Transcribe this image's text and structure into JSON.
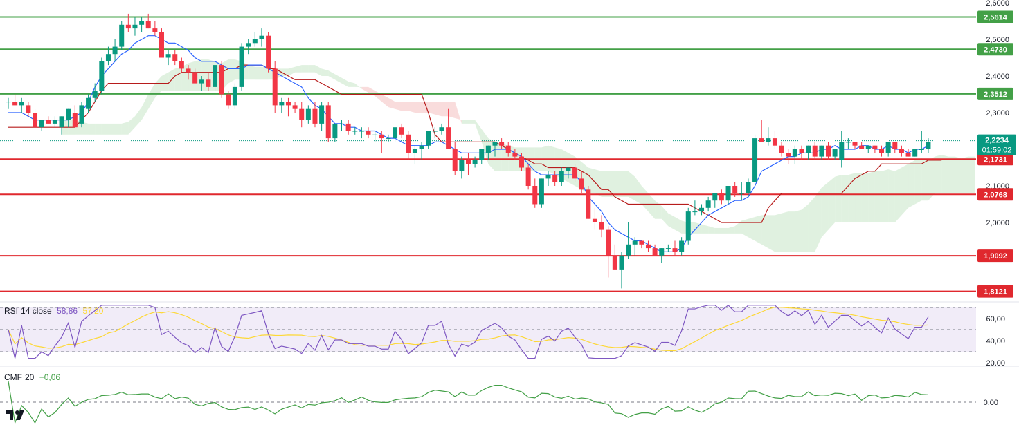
{
  "colors": {
    "up": "#089981",
    "down": "#f23645",
    "tenkan": "#2962ff",
    "kijun": "#b71c1c",
    "cloud_bull": "#a5d6a7",
    "cloud_bear": "#ef9a9a",
    "support": "#e0282e",
    "resistance": "#43a047",
    "rsi_line": "#7e57c2",
    "rsi_ma": "#fdd835",
    "rsi_band": "#ede7f6",
    "cmf_line": "#43a047",
    "price_tag": "#089981"
  },
  "price_axis": {
    "ticks": [
      "2,6000",
      "2,5000",
      "2,4000",
      "2,3000",
      "2,2000",
      "2,1000",
      "2,0000"
    ],
    "current_price": "2,2234",
    "countdown": "01:59:02"
  },
  "levels": {
    "resistance": [
      {
        "label": "2,5614",
        "value": 2.5614
      },
      {
        "label": "2,4730",
        "value": 2.473
      },
      {
        "label": "2,3512",
        "value": 2.3512
      }
    ],
    "support": [
      {
        "label": "2,1731",
        "value": 2.1731
      },
      {
        "label": "2,0768",
        "value": 2.0768
      },
      {
        "label": "1,9092",
        "value": 1.9092
      },
      {
        "label": "1,8121",
        "value": 1.8121
      }
    ]
  },
  "rsi": {
    "name": "RSI",
    "params": "14 close",
    "value": "58,86",
    "ma_value": "57,20",
    "ticks": [
      "60,00",
      "40,00",
      "20,00"
    ]
  },
  "cmf": {
    "name": "CMF",
    "params": "20",
    "value": "−0,06",
    "ticks": [
      "0,00"
    ]
  },
  "chart_data": {
    "type": "candlestick",
    "ylim": [
      1.8,
      2.6
    ],
    "candles_ohlc": [
      [
        2.33,
        2.34,
        2.31,
        2.33
      ],
      [
        2.33,
        2.35,
        2.32,
        2.32
      ],
      [
        2.32,
        2.34,
        2.3,
        2.33
      ],
      [
        2.32,
        2.33,
        2.29,
        2.3
      ],
      [
        2.3,
        2.31,
        2.26,
        2.26
      ],
      [
        2.26,
        2.28,
        2.25,
        2.28
      ],
      [
        2.28,
        2.29,
        2.27,
        2.27
      ],
      [
        2.27,
        2.29,
        2.26,
        2.28
      ],
      [
        2.26,
        2.29,
        2.24,
        2.29
      ],
      [
        2.28,
        2.31,
        2.26,
        2.31
      ],
      [
        2.3,
        2.32,
        2.27,
        2.26
      ],
      [
        2.27,
        2.33,
        2.26,
        2.32
      ],
      [
        2.31,
        2.35,
        2.3,
        2.34
      ],
      [
        2.34,
        2.38,
        2.33,
        2.36
      ],
      [
        2.36,
        2.45,
        2.35,
        2.44
      ],
      [
        2.44,
        2.48,
        2.43,
        2.46
      ],
      [
        2.46,
        2.5,
        2.44,
        2.48
      ],
      [
        2.48,
        2.55,
        2.47,
        2.54
      ],
      [
        2.54,
        2.57,
        2.52,
        2.53
      ],
      [
        2.53,
        2.56,
        2.51,
        2.54
      ],
      [
        2.54,
        2.56,
        2.52,
        2.55
      ],
      [
        2.55,
        2.57,
        2.53,
        2.53
      ],
      [
        2.53,
        2.55,
        2.51,
        2.52
      ],
      [
        2.52,
        2.53,
        2.45,
        2.45
      ],
      [
        2.45,
        2.47,
        2.43,
        2.46
      ],
      [
        2.46,
        2.47,
        2.43,
        2.44
      ],
      [
        2.44,
        2.45,
        2.41,
        2.42
      ],
      [
        2.42,
        2.43,
        2.39,
        2.41
      ],
      [
        2.41,
        2.42,
        2.38,
        2.38
      ],
      [
        2.38,
        2.4,
        2.36,
        2.39
      ],
      [
        2.39,
        2.41,
        2.36,
        2.37
      ],
      [
        2.37,
        2.43,
        2.36,
        2.43
      ],
      [
        2.43,
        2.44,
        2.34,
        2.35
      ],
      [
        2.35,
        2.36,
        2.31,
        2.32
      ],
      [
        2.32,
        2.38,
        2.31,
        2.37
      ],
      [
        2.37,
        2.49,
        2.36,
        2.48
      ],
      [
        2.48,
        2.5,
        2.46,
        2.49
      ],
      [
        2.49,
        2.52,
        2.48,
        2.5
      ],
      [
        2.5,
        2.53,
        2.48,
        2.51
      ],
      [
        2.51,
        2.52,
        2.41,
        2.42
      ],
      [
        2.42,
        2.44,
        2.3,
        2.32
      ],
      [
        2.32,
        2.34,
        2.3,
        2.33
      ],
      [
        2.33,
        2.34,
        2.29,
        2.32
      ],
      [
        2.32,
        2.33,
        2.3,
        2.31
      ],
      [
        2.31,
        2.33,
        2.26,
        2.28
      ],
      [
        2.28,
        2.32,
        2.27,
        2.31
      ],
      [
        2.31,
        2.33,
        2.26,
        2.27
      ],
      [
        2.27,
        2.33,
        2.25,
        2.32
      ],
      [
        2.32,
        2.33,
        2.22,
        2.23
      ],
      [
        2.23,
        2.27,
        2.22,
        2.27
      ],
      [
        2.27,
        2.28,
        2.25,
        2.27
      ],
      [
        2.27,
        2.28,
        2.24,
        2.25
      ],
      [
        2.25,
        2.26,
        2.24,
        2.25
      ],
      [
        2.25,
        2.26,
        2.23,
        2.25
      ],
      [
        2.25,
        2.26,
        2.23,
        2.24
      ],
      [
        2.24,
        2.25,
        2.22,
        2.24
      ],
      [
        2.24,
        2.25,
        2.19,
        2.23
      ],
      [
        2.23,
        2.24,
        2.22,
        2.23
      ],
      [
        2.23,
        2.26,
        2.22,
        2.26
      ],
      [
        2.26,
        2.27,
        2.23,
        2.24
      ],
      [
        2.24,
        2.25,
        2.17,
        2.19
      ],
      [
        2.19,
        2.21,
        2.16,
        2.2
      ],
      [
        2.2,
        2.22,
        2.17,
        2.21
      ],
      [
        2.21,
        2.25,
        2.2,
        2.25
      ],
      [
        2.25,
        2.26,
        2.23,
        2.25
      ],
      [
        2.25,
        2.27,
        2.24,
        2.26
      ],
      [
        2.26,
        2.31,
        2.2,
        2.2
      ],
      [
        2.2,
        2.22,
        2.13,
        2.14
      ],
      [
        2.14,
        2.18,
        2.12,
        2.17
      ],
      [
        2.17,
        2.19,
        2.13,
        2.16
      ],
      [
        2.16,
        2.18,
        2.15,
        2.17
      ],
      [
        2.17,
        2.2,
        2.16,
        2.2
      ],
      [
        2.19,
        2.21,
        2.17,
        2.21
      ],
      [
        2.21,
        2.22,
        2.18,
        2.22
      ],
      [
        2.22,
        2.23,
        2.2,
        2.21
      ],
      [
        2.21,
        2.22,
        2.18,
        2.19
      ],
      [
        2.19,
        2.2,
        2.17,
        2.18
      ],
      [
        2.18,
        2.19,
        2.14,
        2.15
      ],
      [
        2.15,
        2.16,
        2.09,
        2.1
      ],
      [
        2.1,
        2.12,
        2.04,
        2.05
      ],
      [
        2.05,
        2.12,
        2.04,
        2.12
      ],
      [
        2.12,
        2.14,
        2.1,
        2.13
      ],
      [
        2.13,
        2.14,
        2.1,
        2.11
      ],
      [
        2.11,
        2.15,
        2.1,
        2.14
      ],
      [
        2.14,
        2.15,
        2.12,
        2.15
      ],
      [
        2.15,
        2.16,
        2.11,
        2.12
      ],
      [
        2.12,
        2.14,
        2.08,
        2.09
      ],
      [
        2.09,
        2.1,
        2.01,
        2.01
      ],
      [
        2.01,
        2.04,
        1.98,
        2.0
      ],
      [
        2.0,
        2.02,
        1.96,
        1.98
      ],
      [
        1.98,
        1.99,
        1.85,
        1.91
      ],
      [
        1.91,
        1.94,
        1.89,
        1.87
      ],
      [
        1.87,
        1.92,
        1.82,
        1.91
      ],
      [
        1.91,
        2.0,
        1.9,
        1.94
      ],
      [
        1.94,
        1.96,
        1.91,
        1.95
      ],
      [
        1.95,
        1.95,
        1.93,
        1.94
      ],
      [
        1.94,
        1.95,
        1.92,
        1.93
      ],
      [
        1.93,
        1.94,
        1.91,
        1.91
      ],
      [
        1.91,
        1.93,
        1.89,
        1.93
      ],
      [
        1.93,
        1.94,
        1.92,
        1.93
      ],
      [
        1.93,
        1.95,
        1.91,
        1.92
      ],
      [
        1.92,
        1.96,
        1.91,
        1.95
      ],
      [
        1.95,
        2.04,
        1.94,
        2.03
      ],
      [
        2.03,
        2.06,
        2.02,
        2.03
      ],
      [
        2.03,
        2.05,
        2.02,
        2.04
      ],
      [
        2.04,
        2.07,
        2.03,
        2.06
      ],
      [
        2.06,
        2.08,
        2.04,
        2.08
      ],
      [
        2.08,
        2.09,
        2.05,
        2.06
      ],
      [
        2.06,
        2.1,
        2.05,
        2.1
      ],
      [
        2.1,
        2.11,
        2.07,
        2.08
      ],
      [
        2.08,
        2.11,
        2.06,
        2.08
      ],
      [
        2.08,
        2.12,
        2.07,
        2.11
      ],
      [
        2.11,
        2.24,
        2.1,
        2.23
      ],
      [
        2.23,
        2.28,
        2.22,
        2.22
      ],
      [
        2.22,
        2.26,
        2.21,
        2.23
      ],
      [
        2.23,
        2.25,
        2.2,
        2.21
      ],
      [
        2.21,
        2.22,
        2.18,
        2.19
      ],
      [
        2.19,
        2.2,
        2.16,
        2.18
      ],
      [
        2.18,
        2.21,
        2.16,
        2.2
      ],
      [
        2.2,
        2.21,
        2.17,
        2.19
      ],
      [
        2.19,
        2.21,
        2.17,
        2.21
      ],
      [
        2.21,
        2.22,
        2.17,
        2.18
      ],
      [
        2.18,
        2.21,
        2.17,
        2.21
      ],
      [
        2.21,
        2.22,
        2.17,
        2.18
      ],
      [
        2.18,
        2.2,
        2.17,
        2.2
      ],
      [
        2.17,
        2.25,
        2.15,
        2.22
      ],
      [
        2.22,
        2.23,
        2.2,
        2.22
      ],
      [
        2.22,
        2.22,
        2.2,
        2.21
      ],
      [
        2.21,
        2.22,
        2.2,
        2.2
      ],
      [
        2.2,
        2.21,
        2.19,
        2.21
      ],
      [
        2.21,
        2.21,
        2.19,
        2.2
      ],
      [
        2.2,
        2.21,
        2.18,
        2.19
      ],
      [
        2.19,
        2.22,
        2.18,
        2.22
      ],
      [
        2.22,
        2.22,
        2.19,
        2.2
      ],
      [
        2.2,
        2.21,
        2.18,
        2.19
      ],
      [
        2.19,
        2.2,
        2.18,
        2.18
      ],
      [
        2.18,
        2.2,
        2.18,
        2.2
      ],
      [
        2.2,
        2.25,
        2.19,
        2.2
      ],
      [
        2.2,
        2.23,
        2.19,
        2.22
      ]
    ],
    "tenkan": [
      2.3,
      2.3,
      2.3,
      2.29,
      2.28,
      2.28,
      2.28,
      2.28,
      2.28,
      2.28,
      2.29,
      2.3,
      2.33,
      2.37,
      2.4,
      2.42,
      2.44,
      2.46,
      2.47,
      2.49,
      2.5,
      2.51,
      2.51,
      2.5,
      2.49,
      2.49,
      2.48,
      2.47,
      2.45,
      2.44,
      2.44,
      2.44,
      2.43,
      2.42,
      2.42,
      2.42,
      2.43,
      2.43,
      2.43,
      2.42,
      2.41,
      2.4,
      2.39,
      2.38,
      2.37,
      2.34,
      2.32,
      2.31,
      2.29,
      2.27,
      2.27,
      2.26,
      2.26,
      2.25,
      2.25,
      2.25,
      2.24,
      2.23,
      2.23,
      2.22,
      2.21,
      2.21,
      2.21,
      2.21,
      2.22,
      2.22,
      2.21,
      2.2,
      2.19,
      2.19,
      2.19,
      2.19,
      2.19,
      2.2,
      2.2,
      2.2,
      2.19,
      2.18,
      2.16,
      2.14,
      2.13,
      2.13,
      2.13,
      2.13,
      2.13,
      2.13,
      2.11,
      2.07,
      2.05,
      2.03,
      2.0,
      1.98,
      1.97,
      1.96,
      1.95,
      1.95,
      1.94,
      1.93,
      1.92,
      1.92,
      1.92,
      1.93,
      1.96,
      1.98,
      2.0,
      2.02,
      2.03,
      2.04,
      2.05,
      2.06,
      2.06,
      2.07,
      2.1,
      2.14,
      2.15,
      2.16,
      2.17,
      2.18,
      2.18,
      2.19,
      2.19,
      2.19,
      2.2,
      2.2,
      2.21,
      2.2,
      2.2,
      2.2,
      2.21,
      2.21,
      2.2,
      2.2,
      2.21,
      2.2,
      2.2,
      2.19,
      2.2,
      2.2,
      2.21
    ],
    "kijun": [
      2.26,
      2.26,
      2.26,
      2.26,
      2.26,
      2.26,
      2.26,
      2.26,
      2.26,
      2.26,
      2.26,
      2.28,
      2.3,
      2.33,
      2.36,
      2.38,
      2.38,
      2.38,
      2.38,
      2.38,
      2.38,
      2.38,
      2.38,
      2.38,
      2.38,
      2.4,
      2.41,
      2.41,
      2.41,
      2.41,
      2.41,
      2.41,
      2.41,
      2.42,
      2.42,
      2.43,
      2.43,
      2.43,
      2.43,
      2.42,
      2.42,
      2.41,
      2.4,
      2.39,
      2.39,
      2.39,
      2.39,
      2.38,
      2.37,
      2.36,
      2.35,
      2.35,
      2.35,
      2.35,
      2.35,
      2.35,
      2.35,
      2.35,
      2.35,
      2.35,
      2.35,
      2.35,
      2.35,
      2.3,
      2.24,
      2.22,
      2.22,
      2.22,
      2.22,
      2.22,
      2.22,
      2.22,
      2.22,
      2.22,
      2.21,
      2.2,
      2.19,
      2.18,
      2.17,
      2.16,
      2.16,
      2.15,
      2.15,
      2.15,
      2.15,
      2.15,
      2.14,
      2.13,
      2.11,
      2.09,
      2.09,
      2.07,
      2.06,
      2.05,
      2.05,
      2.05,
      2.05,
      2.05,
      2.05,
      2.05,
      2.05,
      2.05,
      2.05,
      2.04,
      2.03,
      2.02,
      2.01,
      2.0,
      2.0,
      2.0,
      2.0,
      2.0,
      2.0,
      2.0,
      2.04,
      2.06,
      2.08,
      2.08,
      2.08,
      2.08,
      2.08,
      2.08,
      2.08,
      2.08,
      2.08,
      2.08,
      2.1,
      2.12,
      2.13,
      2.14,
      2.14,
      2.16,
      2.16,
      2.16,
      2.16,
      2.16,
      2.16,
      2.16,
      2.17,
      2.17,
      2.17
    ]
  }
}
